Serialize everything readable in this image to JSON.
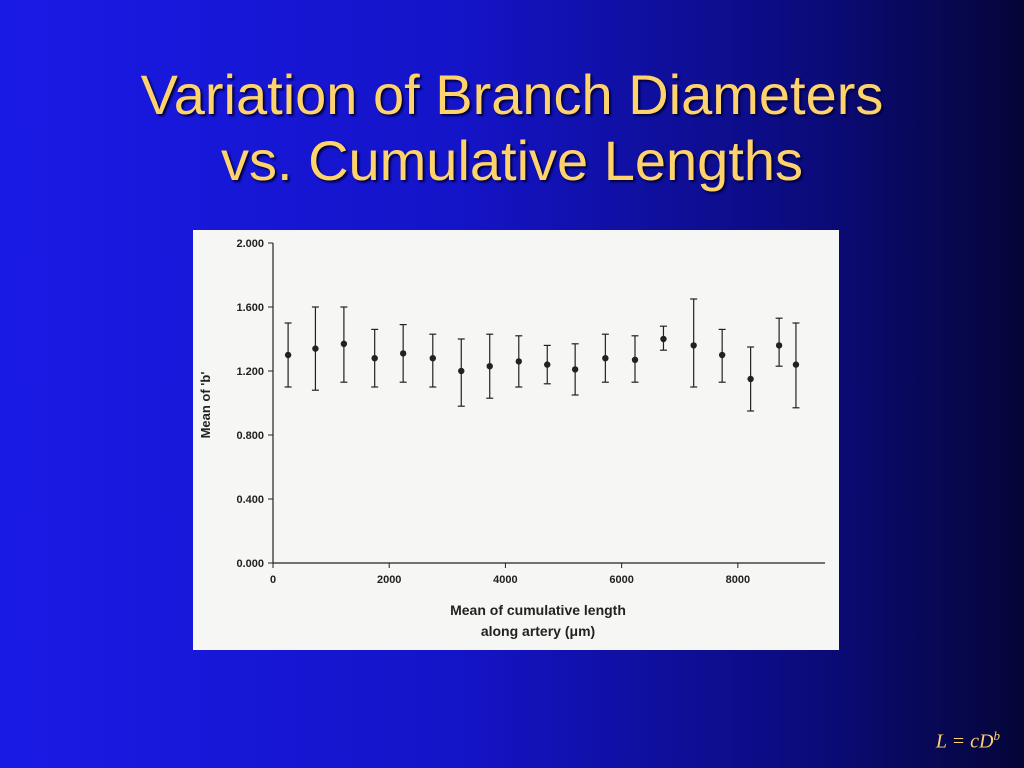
{
  "slide": {
    "title_line1": "Variation of Branch Diameters",
    "title_line2": "vs. Cumulative Lengths",
    "formula_left": "L = cD",
    "formula_exp": "b"
  },
  "colors": {
    "background": "#1414c8",
    "title": "#ffd36b",
    "figure_bg": "#f6f6f4",
    "marks": "#222222"
  },
  "chart_data": {
    "type": "scatter",
    "title": "",
    "xlabel_line1": "Mean of cumulative length",
    "xlabel_line2": "along artery (μm)",
    "ylabel": "Mean of 'b'",
    "xlim": [
      0,
      9500
    ],
    "ylim": [
      0,
      2.0
    ],
    "xticks": [
      "0",
      "2000",
      "4000",
      "6000",
      "8000"
    ],
    "xtick_values": [
      0,
      2000,
      4000,
      6000,
      8000
    ],
    "yticks": [
      "0.000",
      "0.400",
      "0.800",
      "1.200",
      "1.600",
      "2.000"
    ],
    "ytick_values": [
      0,
      0.4,
      0.8,
      1.2,
      1.6,
      2.0
    ],
    "grid": false,
    "series": [
      {
        "points": [
          {
            "x": 260,
            "y": 1.3,
            "err_low": 1.1,
            "err_high": 1.5
          },
          {
            "x": 730,
            "y": 1.34,
            "err_low": 1.08,
            "err_high": 1.6
          },
          {
            "x": 1220,
            "y": 1.37,
            "err_low": 1.13,
            "err_high": 1.6
          },
          {
            "x": 1750,
            "y": 1.28,
            "err_low": 1.1,
            "err_high": 1.46
          },
          {
            "x": 2240,
            "y": 1.31,
            "err_low": 1.13,
            "err_high": 1.49
          },
          {
            "x": 2750,
            "y": 1.28,
            "err_low": 1.1,
            "err_high": 1.43
          },
          {
            "x": 3240,
            "y": 1.2,
            "err_low": 0.98,
            "err_high": 1.4
          },
          {
            "x": 3730,
            "y": 1.23,
            "err_low": 1.03,
            "err_high": 1.43
          },
          {
            "x": 4230,
            "y": 1.26,
            "err_low": 1.1,
            "err_high": 1.42
          },
          {
            "x": 4720,
            "y": 1.24,
            "err_low": 1.12,
            "err_high": 1.36
          },
          {
            "x": 5200,
            "y": 1.21,
            "err_low": 1.05,
            "err_high": 1.37
          },
          {
            "x": 5720,
            "y": 1.28,
            "err_low": 1.13,
            "err_high": 1.43
          },
          {
            "x": 6230,
            "y": 1.27,
            "err_low": 1.13,
            "err_high": 1.42
          },
          {
            "x": 6720,
            "y": 1.4,
            "err_low": 1.33,
            "err_high": 1.48
          },
          {
            "x": 7240,
            "y": 1.36,
            "err_low": 1.1,
            "err_high": 1.65
          },
          {
            "x": 7730,
            "y": 1.3,
            "err_low": 1.13,
            "err_high": 1.46
          },
          {
            "x": 8220,
            "y": 1.15,
            "err_low": 0.95,
            "err_high": 1.35
          },
          {
            "x": 8710,
            "y": 1.36,
            "err_low": 1.23,
            "err_high": 1.53
          },
          {
            "x": 9000,
            "y": 1.24,
            "err_low": 0.97,
            "err_high": 1.5
          }
        ]
      }
    ]
  }
}
